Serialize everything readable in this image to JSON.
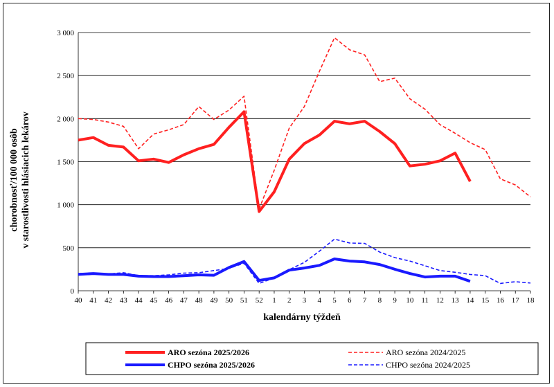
{
  "chart_data": {
    "type": "line",
    "title": "",
    "xlabel": "kalendárny týždeň",
    "ylabel": [
      "chorobnosť/100 000 osôb",
      "v starostlivosti hlásiacich lekárov"
    ],
    "ylim": [
      0,
      3000
    ],
    "yticks": [
      0,
      500,
      1000,
      1500,
      2000,
      2500,
      3000
    ],
    "ytick_labels": [
      "0",
      "500",
      "1 000",
      "1 500",
      "2 000",
      "2 500",
      "3 000"
    ],
    "categories": [
      "40",
      "41",
      "42",
      "43",
      "44",
      "45",
      "46",
      "47",
      "48",
      "49",
      "50",
      "51",
      "52",
      "1",
      "2",
      "3",
      "4",
      "5",
      "6",
      "7",
      "8",
      "9",
      "10",
      "11",
      "12",
      "13",
      "14",
      "15",
      "16",
      "17",
      "18"
    ],
    "series": [
      {
        "name": "ARO sezóna 2025/2026",
        "color": "#ff2020",
        "style": "solid",
        "width": 4,
        "values": [
          1750,
          1780,
          1690,
          1670,
          1510,
          1530,
          1490,
          1580,
          1650,
          1700,
          1900,
          2080,
          920,
          1150,
          1530,
          1710,
          1810,
          1970,
          1940,
          1970,
          1850,
          1710,
          1450,
          1470,
          1510,
          1600,
          1270,
          null,
          null,
          null,
          null
        ]
      },
      {
        "name": "ARO sezóna 2024/2025",
        "color": "#ff2020",
        "style": "dashed",
        "width": 1.6,
        "values": [
          2000,
          1990,
          1960,
          1910,
          1650,
          1820,
          1870,
          1930,
          2140,
          1990,
          2100,
          2260,
          950,
          1400,
          1890,
          2140,
          2550,
          2940,
          2800,
          2740,
          2430,
          2470,
          2230,
          2110,
          1930,
          1830,
          1720,
          1640,
          1300,
          1230,
          1090
        ]
      },
      {
        "name": "CHPO sezóna 2025/2026",
        "color": "#1a1aff",
        "style": "solid",
        "width": 4,
        "values": [
          190,
          200,
          190,
          190,
          170,
          165,
          165,
          175,
          185,
          180,
          270,
          340,
          120,
          150,
          240,
          265,
          295,
          370,
          345,
          335,
          305,
          250,
          200,
          160,
          170,
          170,
          110,
          null,
          null,
          null,
          null
        ]
      },
      {
        "name": "CHPO sezóna 2024/2025",
        "color": "#1a1aff",
        "style": "dashed",
        "width": 1.6,
        "values": [
          200,
          205,
          195,
          210,
          175,
          175,
          185,
          205,
          210,
          235,
          260,
          320,
          85,
          150,
          245,
          330,
          460,
          600,
          555,
          550,
          450,
          385,
          345,
          290,
          235,
          215,
          190,
          175,
          85,
          105,
          90
        ]
      }
    ],
    "legend": [
      {
        "label": "ARO sezóna 2025/2026"
      },
      {
        "label": "ARO sezóna 2024/2025"
      },
      {
        "label": "CHPO sezóna 2025/2026"
      },
      {
        "label": "CHPO sezóna 2024/2025"
      }
    ]
  }
}
